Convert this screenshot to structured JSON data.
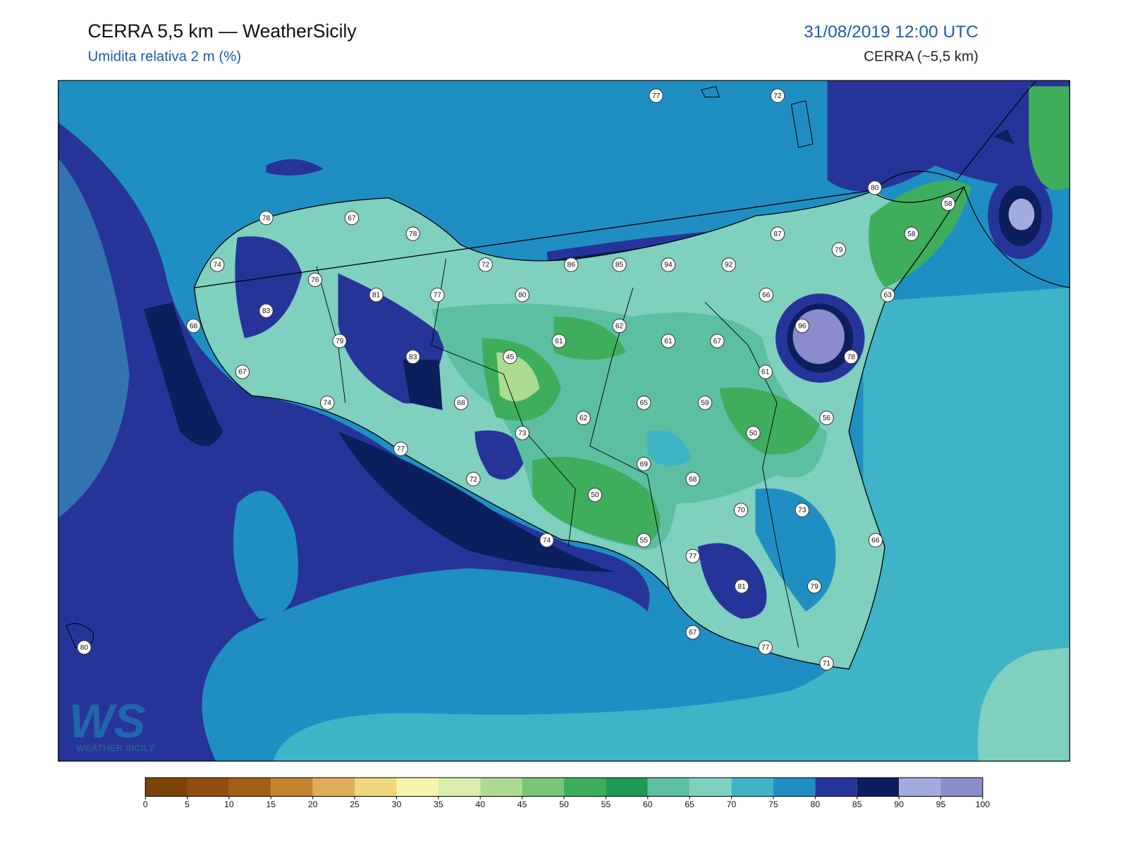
{
  "header": {
    "title": "CERRA 5,5 km — WeatherSicily",
    "subtitle": "Umidita relativa 2 m (%)",
    "date": "31/08/2019 12:00 UTC",
    "model": "CERRA (~5,5 km)"
  },
  "stations": [
    77,
    72,
    80,
    58,
    58,
    78,
    67,
    78,
    87,
    79,
    74,
    72,
    86,
    85,
    94,
    92,
    76,
    81,
    77,
    80,
    66,
    63,
    83,
    62,
    96,
    68,
    79,
    61,
    61,
    67,
    83,
    45,
    78,
    67,
    61,
    74,
    68,
    65,
    59,
    62,
    56,
    73,
    50,
    77,
    69,
    72,
    68,
    50,
    70,
    73,
    74,
    55,
    66,
    77,
    81,
    79,
    67,
    77,
    71,
    80
  ],
  "colorbar": {
    "ticks": [
      0,
      5,
      10,
      15,
      20,
      25,
      30,
      35,
      40,
      45,
      50,
      55,
      60,
      65,
      70,
      75,
      80,
      85,
      90,
      95,
      100
    ],
    "colors": [
      "#7a4308",
      "#8e4e10",
      "#a35f14",
      "#c4832e",
      "#e0ae5a",
      "#f0d67c",
      "#f7f6ae",
      "#d9eeac",
      "#acdc8f",
      "#78c578",
      "#3fae5c",
      "#1c9a56",
      "#5cbfa2",
      "#7fd0bf",
      "#3fb4c6",
      "#1f8fc3",
      "#26349a",
      "#0c1e5c",
      "#a3aadd",
      "#8b8ccb"
    ]
  },
  "logo": {
    "mark": "WS",
    "text": "WEATHER SICILY"
  }
}
